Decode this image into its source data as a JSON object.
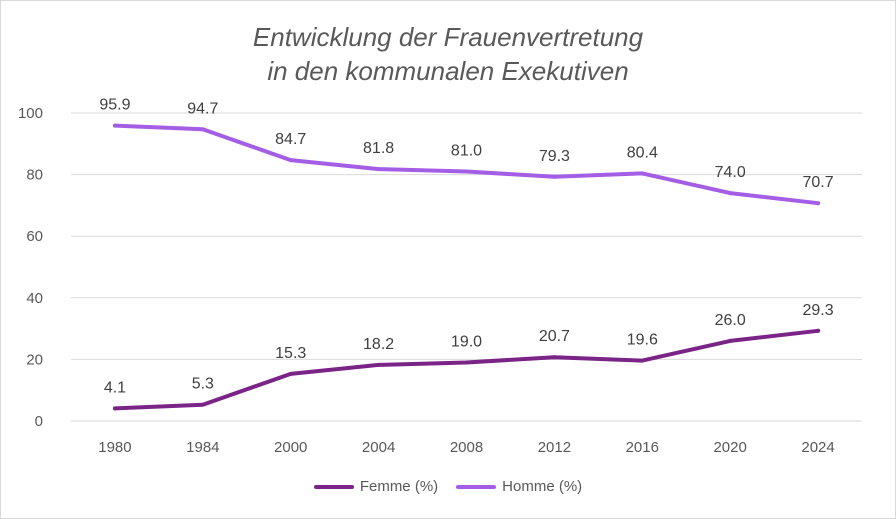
{
  "chart_data": {
    "type": "line",
    "title_line1": "Entwicklung der Frauenvertretung",
    "title_line2": "in den kommunalen Exekutiven",
    "categories": [
      "1980",
      "1984",
      "2000",
      "2004",
      "2008",
      "2012",
      "2016",
      "2020",
      "2024"
    ],
    "ylim": [
      0,
      100
    ],
    "yticks": [
      0,
      20,
      40,
      60,
      80,
      100
    ],
    "grid": true,
    "legend_position": "bottom",
    "series": [
      {
        "name": "Femme (%)",
        "color": "#7b2487",
        "values": [
          4.1,
          5.3,
          15.3,
          18.2,
          19.0,
          20.7,
          19.6,
          26.0,
          29.3
        ]
      },
      {
        "name": "Homme (%)",
        "color": "#a45ee5",
        "values": [
          95.9,
          94.7,
          84.7,
          81.8,
          81.0,
          79.3,
          80.4,
          74.0,
          70.7
        ]
      }
    ]
  }
}
